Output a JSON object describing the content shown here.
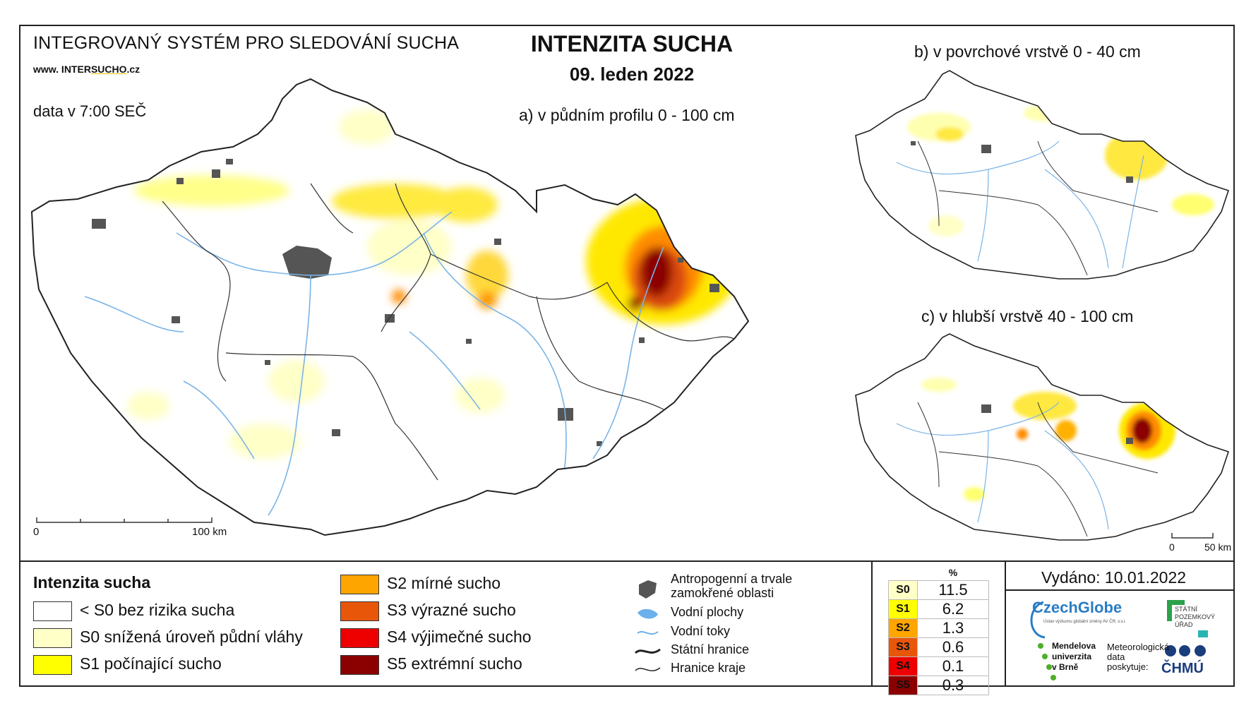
{
  "header": {
    "system_title": "INTEGROVANÝ SYSTÉM PRO SLEDOVÁNÍ SUCHA",
    "website_prefix": "www. INTER",
    "website_mid": "SUCHO",
    "website_suffix": ".cz",
    "data_time": "data v 7:00 SEČ",
    "main_title": "INTENZITA SUCHA",
    "date": "09. leden 2022"
  },
  "maps": {
    "main": {
      "title": "a) v půdním profilu 0 - 100 cm",
      "scale_start": "0",
      "scale_end": "100 km"
    },
    "surface": {
      "title": "b) v povrchové vrstvě 0 - 40 cm"
    },
    "deep": {
      "title": "c) v hlubší vrstvě 40 - 100 cm",
      "scale_start": "0",
      "scale_end": "50 km"
    }
  },
  "legend": {
    "title": "Intenzita sucha",
    "classes": [
      {
        "label": "< S0 bez rizika sucha",
        "color": "#ffffff"
      },
      {
        "label": "S0 snížená úroveň půdní vláhy",
        "color": "#ffffc8"
      },
      {
        "label": "S1 počínající sucho",
        "color": "#ffff00"
      },
      {
        "label": "S2 mírné sucho",
        "color": "#ffa500"
      },
      {
        "label": "S3 výrazné sucho",
        "color": "#e8560a"
      },
      {
        "label": "S4 výjimečné sucho",
        "color": "#ee0000"
      },
      {
        "label": "S5 extrémní sucho",
        "color": "#8b0000"
      }
    ],
    "other": [
      {
        "label": "Antropogenní a trvale zamokřené oblasti",
        "icon": "urban-area-icon"
      },
      {
        "label": "Vodní plochy",
        "icon": "water-body-icon"
      },
      {
        "label": "Vodní toky",
        "icon": "river-icon"
      },
      {
        "label": "Státní hranice",
        "icon": "state-border-icon"
      },
      {
        "label": "Hranice kraje",
        "icon": "region-border-icon"
      }
    ]
  },
  "percent_table": {
    "header": "%",
    "rows": [
      {
        "class": "S0",
        "value": "11.5",
        "color": "#ffffc8"
      },
      {
        "class": "S1",
        "value": "6.2",
        "color": "#ffff00"
      },
      {
        "class": "S2",
        "value": "1.3",
        "color": "#ffa500"
      },
      {
        "class": "S3",
        "value": "0.6",
        "color": "#e8560a"
      },
      {
        "class": "S4",
        "value": "0.1",
        "color": "#ee0000"
      },
      {
        "class": "S5",
        "value": "0.3",
        "color": "#8b0000"
      }
    ]
  },
  "footer": {
    "issued": "Vydáno: 10.01.2022",
    "logo_czechglobe": "CzechGlobe",
    "logo_czechglobe_sub": "Ústav výzkumu globální změny AV ČR, v.v.i.",
    "logo_spu": "STÁTNÍ POZEMKOVÝ ÚŘAD",
    "logo_mendelu_1": "Mendelova",
    "logo_mendelu_2": "univerzita",
    "logo_mendelu_3": "v Brně",
    "meteo_1": "Meteorologická",
    "meteo_2": "data",
    "meteo_3": "poskytuje:",
    "logo_chmu": "ČHMÚ"
  }
}
